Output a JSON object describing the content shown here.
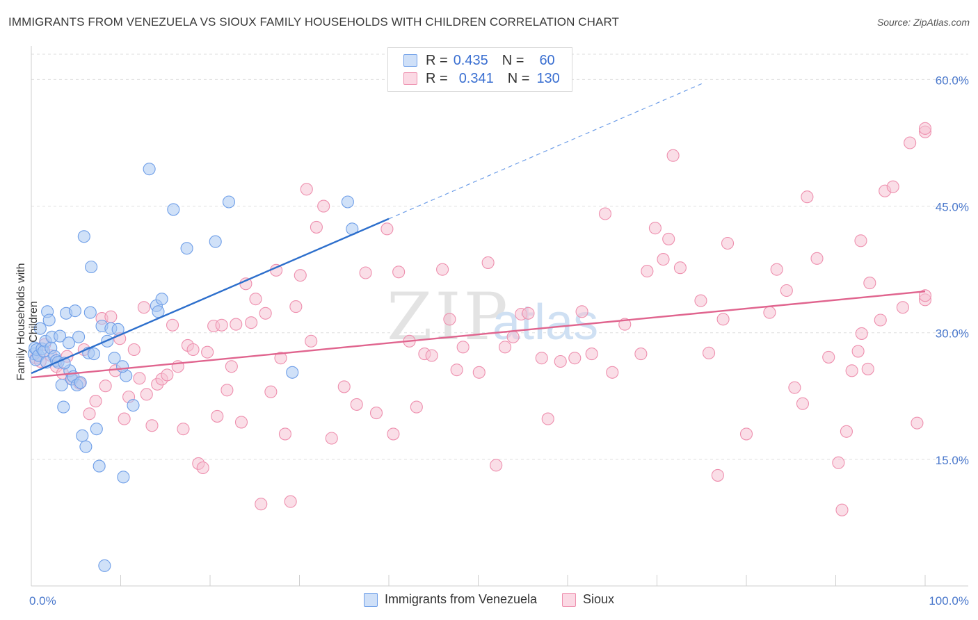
{
  "header": {
    "title": "IMMIGRANTS FROM VENEZUELA VS SIOUX FAMILY HOUSEHOLDS WITH CHILDREN CORRELATION CHART",
    "source": "Source: ZipAtlas.com"
  },
  "legend": {
    "rows": [
      {
        "r_label": "R =",
        "r_value": "0.435",
        "n_label": "N =",
        "n_value": "60",
        "color": "#6e9ee8"
      },
      {
        "r_label": "R =",
        "r_value": "0.341",
        "n_label": "N =",
        "n_value": "130",
        "color": "#ee8fae"
      }
    ]
  },
  "watermark": {
    "zip": "ZIP",
    "atlas": "atlas"
  },
  "colors": {
    "blue_fill": "#a9c8f2",
    "blue_stroke": "#6e9ee8",
    "blue_line": "#2d6fcc",
    "pink_fill": "#f6c2d3",
    "pink_stroke": "#ee8fae",
    "pink_line": "#e0648e",
    "axis_text": "#4a78cc",
    "grid": "#dedede"
  },
  "chart_data": {
    "type": "scatter",
    "title": "IMMIGRANTS FROM VENEZUELA VS SIOUX FAMILY HOUSEHOLDS WITH CHILDREN CORRELATION CHART",
    "xlabel": "",
    "ylabel": "Family Households with Children",
    "xlim": [
      0,
      100
    ],
    "ylim": [
      0,
      63
    ],
    "x_tick_labels": [
      "0.0%",
      "100.0%"
    ],
    "y_ticks": [
      15,
      30,
      45,
      60
    ],
    "y_tick_labels": [
      "15.0%",
      "30.0%",
      "45.0%",
      "60.0%"
    ],
    "series": [
      {
        "name": "Immigrants from Venezuela",
        "color": "#6e9ee8",
        "r": 0.435,
        "n": 60,
        "trend": {
          "x0": 0,
          "y0": 25.2,
          "x1": 40,
          "y1": 43.5,
          "dash_to_x": 75,
          "dash_to_y": 59.5
        },
        "points": [
          [
            0.3,
            27.5
          ],
          [
            0.4,
            28.2
          ],
          [
            0.5,
            26.8
          ],
          [
            0.6,
            28.0
          ],
          [
            0.8,
            27.3
          ],
          [
            1.0,
            30.5
          ],
          [
            1.2,
            28.1
          ],
          [
            1.4,
            27.8
          ],
          [
            1.6,
            29.0
          ],
          [
            1.7,
            26.5
          ],
          [
            1.8,
            32.5
          ],
          [
            2.0,
            31.5
          ],
          [
            2.2,
            28.2
          ],
          [
            2.3,
            29.5
          ],
          [
            2.6,
            27.2
          ],
          [
            2.8,
            26.7
          ],
          [
            3.0,
            26.5
          ],
          [
            3.2,
            29.6
          ],
          [
            3.4,
            23.8
          ],
          [
            3.6,
            21.2
          ],
          [
            3.9,
            32.3
          ],
          [
            4.2,
            28.8
          ],
          [
            4.3,
            25.5
          ],
          [
            4.5,
            24.5
          ],
          [
            4.7,
            24.8
          ],
          [
            4.9,
            32.6
          ],
          [
            5.1,
            23.8
          ],
          [
            5.3,
            29.5
          ],
          [
            5.5,
            24.1
          ],
          [
            5.7,
            17.8
          ],
          [
            5.9,
            41.4
          ],
          [
            6.1,
            16.5
          ],
          [
            6.4,
            27.6
          ],
          [
            6.7,
            37.8
          ],
          [
            7.0,
            27.5
          ],
          [
            7.3,
            18.6
          ],
          [
            7.6,
            14.2
          ],
          [
            7.9,
            30.8
          ],
          [
            8.2,
            2.4
          ],
          [
            8.5,
            29.0
          ],
          [
            8.9,
            30.5
          ],
          [
            9.3,
            27.0
          ],
          [
            9.7,
            30.4
          ],
          [
            10.3,
            12.9
          ],
          [
            10.6,
            24.9
          ],
          [
            11.4,
            21.4
          ],
          [
            13.2,
            49.4
          ],
          [
            14.0,
            33.2
          ],
          [
            14.6,
            34.0
          ],
          [
            15.9,
            44.6
          ],
          [
            17.4,
            40.0
          ],
          [
            20.6,
            40.8
          ],
          [
            22.1,
            45.5
          ],
          [
            14.2,
            32.5
          ],
          [
            10.2,
            26.0
          ],
          [
            35.4,
            45.5
          ],
          [
            35.9,
            42.3
          ],
          [
            29.2,
            25.3
          ],
          [
            6.6,
            32.4
          ],
          [
            3.7,
            26.4
          ]
        ]
      },
      {
        "name": "Sioux",
        "color": "#ee8fae",
        "r": 0.341,
        "n": 130,
        "trend": {
          "x0": 0,
          "y0": 24.7,
          "x1": 100,
          "y1": 34.9
        },
        "points": [
          [
            0.5,
            27.0
          ],
          [
            1.0,
            26.6
          ],
          [
            1.5,
            28.6
          ],
          [
            2.2,
            27.3
          ],
          [
            2.8,
            26.0
          ],
          [
            3.5,
            25.2
          ],
          [
            4.0,
            27.2
          ],
          [
            4.6,
            24.5
          ],
          [
            5.4,
            24.0
          ],
          [
            5.9,
            28.0
          ],
          [
            6.5,
            20.4
          ],
          [
            7.2,
            21.9
          ],
          [
            7.9,
            31.7
          ],
          [
            8.3,
            23.7
          ],
          [
            8.9,
            31.9
          ],
          [
            9.4,
            25.5
          ],
          [
            9.9,
            29.3
          ],
          [
            10.4,
            19.8
          ],
          [
            10.9,
            22.4
          ],
          [
            11.5,
            28.0
          ],
          [
            12.1,
            24.6
          ],
          [
            12.6,
            33.0
          ],
          [
            12.9,
            22.7
          ],
          [
            13.5,
            19.0
          ],
          [
            14.1,
            23.9
          ],
          [
            14.6,
            24.5
          ],
          [
            15.2,
            25.0
          ],
          [
            15.8,
            30.9
          ],
          [
            16.4,
            26.0
          ],
          [
            17.0,
            18.6
          ],
          [
            17.5,
            28.5
          ],
          [
            18.1,
            28.0
          ],
          [
            18.7,
            14.5
          ],
          [
            19.2,
            14.0
          ],
          [
            19.7,
            27.7
          ],
          [
            20.4,
            30.8
          ],
          [
            20.8,
            20.1
          ],
          [
            21.3,
            30.9
          ],
          [
            21.9,
            23.2
          ],
          [
            22.4,
            26.0
          ],
          [
            22.9,
            31.0
          ],
          [
            23.5,
            19.4
          ],
          [
            24.0,
            35.8
          ],
          [
            24.6,
            31.2
          ],
          [
            25.1,
            34.0
          ],
          [
            25.7,
            9.7
          ],
          [
            26.2,
            32.3
          ],
          [
            26.8,
            23.0
          ],
          [
            27.4,
            37.4
          ],
          [
            27.9,
            27.0
          ],
          [
            28.4,
            18.0
          ],
          [
            29.0,
            10.0
          ],
          [
            29.6,
            33.1
          ],
          [
            30.1,
            36.8
          ],
          [
            30.8,
            47.0
          ],
          [
            31.3,
            29.0
          ],
          [
            31.9,
            42.5
          ],
          [
            32.7,
            45.0
          ],
          [
            33.6,
            17.5
          ],
          [
            35.0,
            23.6
          ],
          [
            36.4,
            21.5
          ],
          [
            37.4,
            37.1
          ],
          [
            38.6,
            20.5
          ],
          [
            39.8,
            42.3
          ],
          [
            40.5,
            18.0
          ],
          [
            41.1,
            37.2
          ],
          [
            42.3,
            29.0
          ],
          [
            43.1,
            21.2
          ],
          [
            44.0,
            27.5
          ],
          [
            44.8,
            27.3
          ],
          [
            46.0,
            37.5
          ],
          [
            46.8,
            31.6
          ],
          [
            47.6,
            25.6
          ],
          [
            48.3,
            28.3
          ],
          [
            50.1,
            25.3
          ],
          [
            51.1,
            38.3
          ],
          [
            52.0,
            14.3
          ],
          [
            53.0,
            28.3
          ],
          [
            53.9,
            29.5
          ],
          [
            54.8,
            32.2
          ],
          [
            55.6,
            32.3
          ],
          [
            57.1,
            27.0
          ],
          [
            57.8,
            19.8
          ],
          [
            59.2,
            26.6
          ],
          [
            60.8,
            27.0
          ],
          [
            61.6,
            32.5
          ],
          [
            62.7,
            27.5
          ],
          [
            64.2,
            44.1
          ],
          [
            65.0,
            25.3
          ],
          [
            66.4,
            31.0
          ],
          [
            68.2,
            27.5
          ],
          [
            68.9,
            37.3
          ],
          [
            69.8,
            42.4
          ],
          [
            70.7,
            38.7
          ],
          [
            71.3,
            41.1
          ],
          [
            71.8,
            51.0
          ],
          [
            72.6,
            37.7
          ],
          [
            74.9,
            33.8
          ],
          [
            75.8,
            27.6
          ],
          [
            76.8,
            13.1
          ],
          [
            77.4,
            31.6
          ],
          [
            77.9,
            40.6
          ],
          [
            80.0,
            18.0
          ],
          [
            82.6,
            32.4
          ],
          [
            83.4,
            37.5
          ],
          [
            84.5,
            35.0
          ],
          [
            85.4,
            23.5
          ],
          [
            86.3,
            21.6
          ],
          [
            86.8,
            46.1
          ],
          [
            87.9,
            38.8
          ],
          [
            89.2,
            27.1
          ],
          [
            90.3,
            14.6
          ],
          [
            90.7,
            9.0
          ],
          [
            91.2,
            18.3
          ],
          [
            91.8,
            25.5
          ],
          [
            92.5,
            27.8
          ],
          [
            92.8,
            40.9
          ],
          [
            93.8,
            35.9
          ],
          [
            95.0,
            31.5
          ],
          [
            95.5,
            46.8
          ],
          [
            96.4,
            47.3
          ],
          [
            97.5,
            33.0
          ],
          [
            98.3,
            52.5
          ],
          [
            99.1,
            19.3
          ],
          [
            100.0,
            33.9
          ],
          [
            101.2,
            53.8
          ],
          [
            101.6,
            54.2
          ],
          [
            104.0,
            34.4
          ],
          [
            92.9,
            29.9
          ],
          [
            93.6,
            25.7
          ]
        ]
      }
    ]
  },
  "bottom_legend": [
    {
      "label": "Immigrants from Venezuela",
      "color": "#6e9ee8"
    },
    {
      "label": "Sioux",
      "color": "#ee8fae"
    }
  ]
}
